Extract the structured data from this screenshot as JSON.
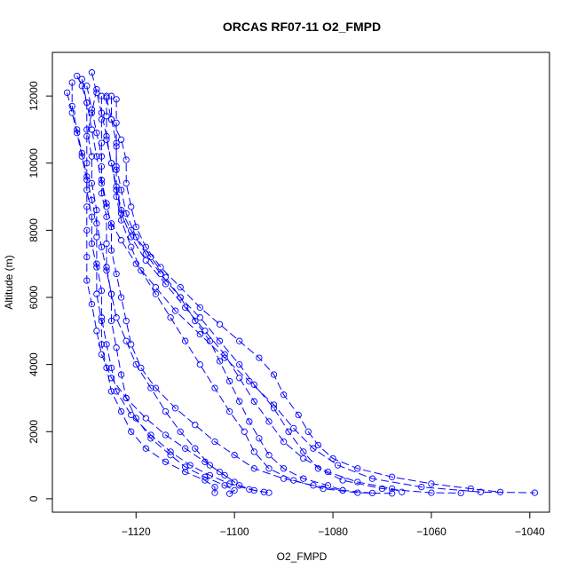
{
  "chart_data": {
    "type": "scatter",
    "title": "ORCAS RF07-11 O2_FMPD",
    "xlabel": "O2_FMPD",
    "ylabel": "Altitude (m)",
    "xlim": [
      -1137,
      -1036
    ],
    "ylim": [
      -400,
      13300
    ],
    "x_ticks": [
      -1120,
      -1100,
      -1080,
      -1060,
      -1040
    ],
    "y_ticks": [
      0,
      2000,
      4000,
      6000,
      8000,
      10000,
      12000
    ],
    "grid": false,
    "legend": "none",
    "color": "#0000ff",
    "marker": "open-circle",
    "line_style": "dashed",
    "series": [
      {
        "values": [
          [
            -1132,
            12600
          ],
          [
            -1131,
            12300
          ],
          [
            -1130,
            11800
          ],
          [
            -1129,
            11000
          ],
          [
            -1128,
            10200
          ],
          [
            -1127,
            9400
          ],
          [
            -1126,
            8700
          ],
          [
            -1125,
            8200
          ],
          [
            -1123,
            7700
          ],
          [
            -1120,
            7000
          ],
          [
            -1116,
            6300
          ],
          [
            -1112,
            5600
          ],
          [
            -1107,
            4900
          ],
          [
            -1102,
            4200
          ],
          [
            -1097,
            3500
          ],
          [
            -1092,
            2800
          ],
          [
            -1088,
            2100
          ],
          [
            -1084,
            1500
          ],
          [
            -1079,
            1000
          ],
          [
            -1072,
            600
          ],
          [
            -1062,
            350
          ],
          [
            -1050,
            200
          ],
          [
            -1039,
            180
          ]
        ]
      },
      {
        "values": [
          [
            -1129,
            12700
          ],
          [
            -1128,
            12100
          ],
          [
            -1127,
            11500
          ],
          [
            -1126,
            10800
          ],
          [
            -1125,
            10000
          ],
          [
            -1124,
            9300
          ],
          [
            -1123,
            8600
          ],
          [
            -1121,
            8000
          ],
          [
            -1118,
            7300
          ],
          [
            -1115,
            6700
          ],
          [
            -1111,
            6000
          ],
          [
            -1107,
            5400
          ],
          [
            -1103,
            4700
          ],
          [
            -1099,
            4000
          ],
          [
            -1096,
            3400
          ],
          [
            -1092,
            2700
          ],
          [
            -1089,
            2000
          ],
          [
            -1086,
            1400
          ],
          [
            -1083,
            900
          ],
          [
            -1078,
            550
          ],
          [
            -1070,
            300
          ],
          [
            -1060,
            180
          ],
          [
            -1054,
            170
          ]
        ]
      },
      {
        "values": [
          [
            -1126,
            12000
          ],
          [
            -1126,
            11400
          ],
          [
            -1126,
            10700
          ],
          [
            -1125,
            10000
          ],
          [
            -1124,
            9200
          ],
          [
            -1123,
            8500
          ],
          [
            -1121,
            7800
          ],
          [
            -1118,
            7100
          ],
          [
            -1114,
            6400
          ],
          [
            -1110,
            5700
          ],
          [
            -1106,
            5000
          ],
          [
            -1102,
            4300
          ],
          [
            -1099,
            3600
          ],
          [
            -1096,
            2900
          ],
          [
            -1093,
            2300
          ],
          [
            -1090,
            1700
          ],
          [
            -1086,
            1200
          ],
          [
            -1081,
            800
          ],
          [
            -1075,
            500
          ],
          [
            -1068,
            300
          ],
          [
            -1066,
            200
          ]
        ]
      },
      {
        "values": [
          [
            -1124,
            11900
          ],
          [
            -1124,
            11200
          ],
          [
            -1124,
            10500
          ],
          [
            -1124,
            9800
          ],
          [
            -1124,
            9000
          ],
          [
            -1123,
            8300
          ],
          [
            -1121,
            7500
          ],
          [
            -1119,
            6800
          ],
          [
            -1116,
            6100
          ],
          [
            -1113,
            5400
          ],
          [
            -1110,
            4700
          ],
          [
            -1107,
            4000
          ],
          [
            -1104,
            3300
          ],
          [
            -1101,
            2600
          ],
          [
            -1098,
            2000
          ],
          [
            -1096,
            1400
          ],
          [
            -1093,
            900
          ],
          [
            -1088,
            550
          ],
          [
            -1082,
            300
          ],
          [
            -1075,
            180
          ],
          [
            -1068,
            160
          ]
        ]
      },
      {
        "values": [
          [
            -1133,
            12400
          ],
          [
            -1133,
            11700
          ],
          [
            -1132,
            11000
          ],
          [
            -1131,
            10300
          ],
          [
            -1130,
            9600
          ],
          [
            -1129,
            8900
          ],
          [
            -1128,
            8200
          ],
          [
            -1127,
            7500
          ],
          [
            -1126,
            6800
          ],
          [
            -1125,
            6100
          ],
          [
            -1124,
            5400
          ],
          [
            -1122,
            4700
          ],
          [
            -1120,
            4000
          ],
          [
            -1117,
            3300
          ],
          [
            -1114,
            2600
          ],
          [
            -1111,
            2000
          ],
          [
            -1108,
            1500
          ],
          [
            -1105,
            1000
          ],
          [
            -1102,
            700
          ],
          [
            -1099,
            400
          ],
          [
            -1096,
            250
          ],
          [
            -1093,
            180
          ]
        ]
      },
      {
        "values": [
          [
            -1131,
            12500
          ],
          [
            -1130,
            11800
          ],
          [
            -1130,
            11000
          ],
          [
            -1129,
            10200
          ],
          [
            -1129,
            9400
          ],
          [
            -1128,
            8600
          ],
          [
            -1128,
            7800
          ],
          [
            -1128,
            7000
          ],
          [
            -1127,
            6200
          ],
          [
            -1127,
            5400
          ],
          [
            -1126,
            4600
          ],
          [
            -1125,
            3900
          ],
          [
            -1124,
            3200
          ],
          [
            -1121,
            2500
          ],
          [
            -1117,
            1900
          ],
          [
            -1113,
            1400
          ],
          [
            -1109,
            1000
          ],
          [
            -1105,
            700
          ],
          [
            -1101,
            450
          ],
          [
            -1097,
            280
          ],
          [
            -1094,
            200
          ]
        ]
      },
      {
        "values": [
          [
            -1127,
            12000
          ],
          [
            -1127,
            11300
          ],
          [
            -1127,
            10600
          ],
          [
            -1127,
            9900
          ],
          [
            -1127,
            9100
          ],
          [
            -1126,
            8400
          ],
          [
            -1126,
            7600
          ],
          [
            -1126,
            6900
          ],
          [
            -1125,
            6100
          ],
          [
            -1125,
            5300
          ],
          [
            -1124,
            4500
          ],
          [
            -1123,
            3700
          ],
          [
            -1122,
            3000
          ],
          [
            -1120,
            2400
          ],
          [
            -1117,
            1800
          ],
          [
            -1113,
            1300
          ],
          [
            -1110,
            950
          ],
          [
            -1106,
            650
          ],
          [
            -1102,
            400
          ],
          [
            -1100,
            250
          ],
          [
            -1101,
            150
          ]
        ]
      },
      {
        "values": [
          [
            -1128,
            12200
          ],
          [
            -1129,
            11500
          ],
          [
            -1130,
            10800
          ],
          [
            -1130,
            10000
          ],
          [
            -1130,
            9200
          ],
          [
            -1129,
            8400
          ],
          [
            -1129,
            7600
          ],
          [
            -1128,
            6900
          ],
          [
            -1128,
            6100
          ],
          [
            -1127,
            5300
          ],
          [
            -1127,
            4600
          ],
          [
            -1126,
            3900
          ],
          [
            -1125,
            3200
          ],
          [
            -1123,
            2600
          ],
          [
            -1121,
            2000
          ],
          [
            -1118,
            1500
          ],
          [
            -1114,
            1100
          ],
          [
            -1110,
            800
          ],
          [
            -1106,
            550
          ],
          [
            -1104,
            350
          ],
          [
            -1104,
            180
          ]
        ]
      },
      {
        "values": [
          [
            -1134,
            12100
          ],
          [
            -1133,
            11500
          ],
          [
            -1132,
            10900
          ],
          [
            -1131,
            10200
          ],
          [
            -1130,
            9500
          ],
          [
            -1130,
            8700
          ],
          [
            -1130,
            8000
          ],
          [
            -1130,
            7200
          ],
          [
            -1130,
            6500
          ],
          [
            -1129,
            5800
          ],
          [
            -1128,
            5000
          ],
          [
            -1127,
            4300
          ],
          [
            -1125,
            3600
          ],
          [
            -1122,
            3000
          ],
          [
            -1118,
            2400
          ],
          [
            -1114,
            1900
          ],
          [
            -1110,
            1500
          ],
          [
            -1106,
            1100
          ],
          [
            -1103,
            800
          ],
          [
            -1100,
            500
          ]
        ]
      },
      {
        "values": [
          [
            -1125,
            12000
          ],
          [
            -1125,
            11300
          ],
          [
            -1124,
            10600
          ],
          [
            -1124,
            9900
          ],
          [
            -1123,
            9200
          ],
          [
            -1122,
            8500
          ],
          [
            -1120,
            7800
          ],
          [
            -1117,
            7200
          ],
          [
            -1114,
            6600
          ],
          [
            -1111,
            6000
          ],
          [
            -1108,
            5300
          ],
          [
            -1105,
            4700
          ],
          [
            -1103,
            4100
          ],
          [
            -1101,
            3500
          ],
          [
            -1099,
            2900
          ],
          [
            -1097,
            2300
          ],
          [
            -1095,
            1800
          ],
          [
            -1093,
            1300
          ],
          [
            -1090,
            900
          ],
          [
            -1086,
            600
          ],
          [
            -1081,
            400
          ],
          [
            -1078,
            250
          ]
        ]
      },
      {
        "values": [
          [
            -1130,
            12300
          ],
          [
            -1129,
            11600
          ],
          [
            -1128,
            10900
          ],
          [
            -1127,
            10200
          ],
          [
            -1127,
            9500
          ],
          [
            -1126,
            8800
          ],
          [
            -1125,
            8100
          ],
          [
            -1125,
            7400
          ],
          [
            -1124,
            6700
          ],
          [
            -1123,
            6000
          ],
          [
            -1122,
            5300
          ],
          [
            -1121,
            4600
          ],
          [
            -1119,
            3900
          ],
          [
            -1116,
            3300
          ],
          [
            -1112,
            2700
          ],
          [
            -1108,
            2200
          ],
          [
            -1104,
            1700
          ],
          [
            -1100,
            1300
          ],
          [
            -1096,
            900
          ],
          [
            -1090,
            600
          ],
          [
            -1084,
            400
          ],
          [
            -1078,
            250
          ],
          [
            -1072,
            170
          ]
        ]
      },
      {
        "values": [
          [
            -1126,
            11950
          ],
          [
            -1125,
            11300
          ],
          [
            -1123,
            10700
          ],
          [
            -1122,
            10100
          ],
          [
            -1122,
            9400
          ],
          [
            -1121,
            8700
          ],
          [
            -1120,
            8100
          ],
          [
            -1118,
            7500
          ],
          [
            -1115,
            6900
          ],
          [
            -1111,
            6300
          ],
          [
            -1107,
            5700
          ],
          [
            -1103,
            5200
          ],
          [
            -1099,
            4700
          ],
          [
            -1095,
            4200
          ],
          [
            -1092,
            3700
          ],
          [
            -1090,
            3100
          ],
          [
            -1087,
            2500
          ],
          [
            -1085,
            2000
          ],
          [
            -1083,
            1600
          ],
          [
            -1080,
            1200
          ],
          [
            -1075,
            900
          ],
          [
            -1068,
            650
          ],
          [
            -1060,
            450
          ],
          [
            -1052,
            300
          ],
          [
            -1046,
            200
          ]
        ]
      }
    ]
  }
}
